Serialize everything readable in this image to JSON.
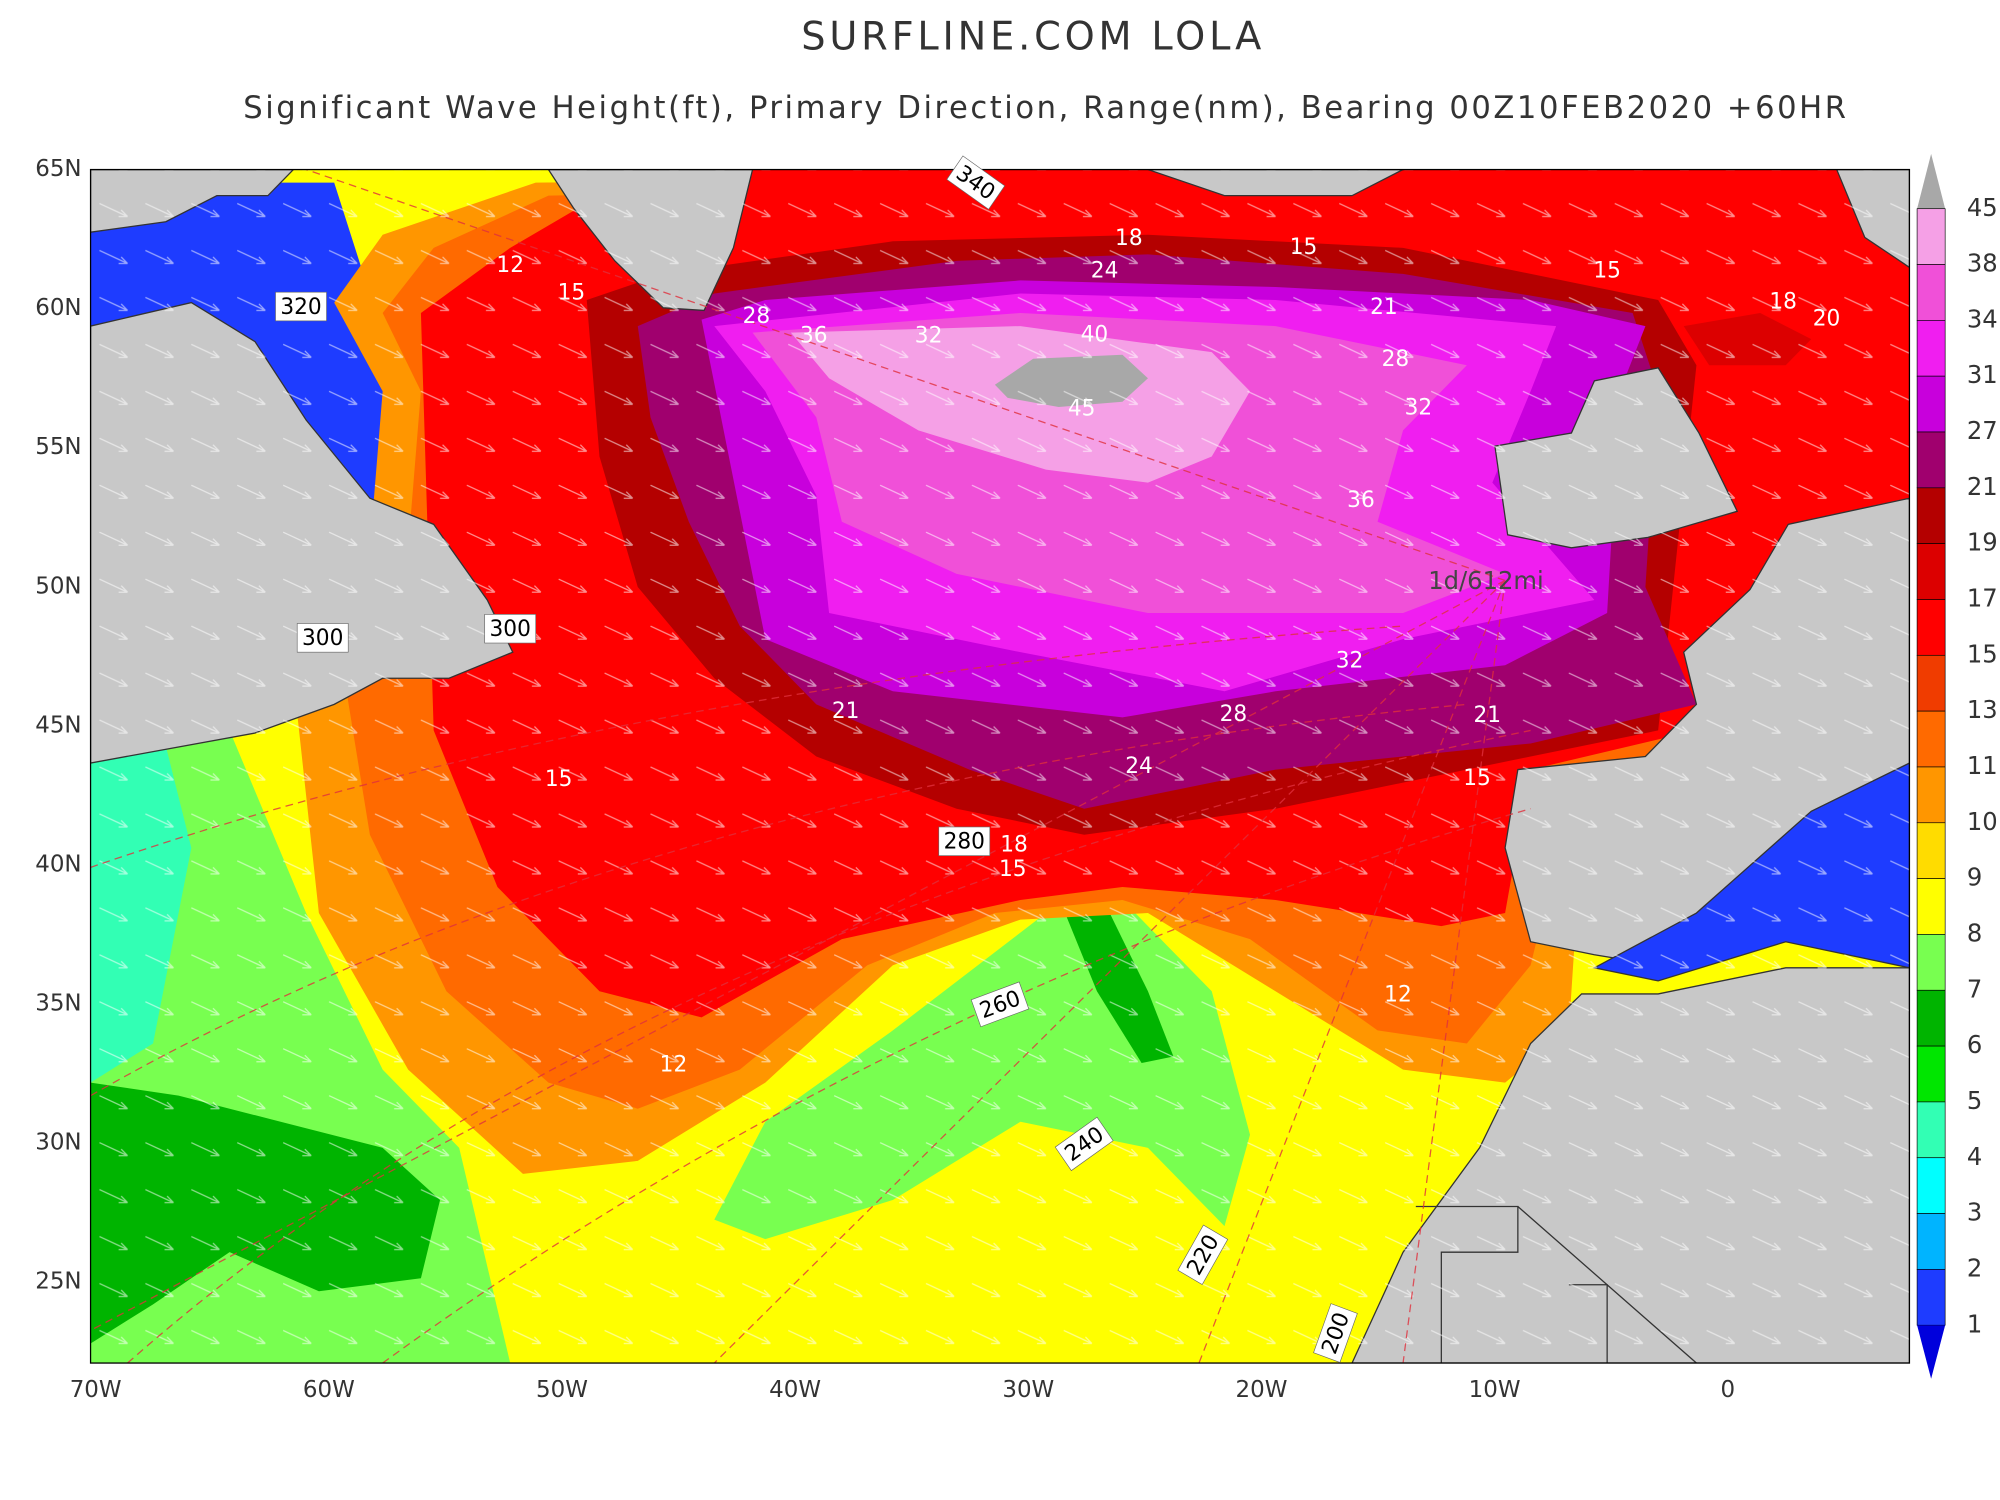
{
  "header": {
    "title": "SURFLINE.COM LOLA",
    "subtitle": "Significant Wave Height(ft), Primary Direction, Range(nm), Bearing 00Z10FEB2020 +60HR"
  },
  "axes": {
    "lat_labels": [
      "65N",
      "60N",
      "55N",
      "50N",
      "45N",
      "40N",
      "35N",
      "30N",
      "25N"
    ],
    "lon_labels": [
      "70W",
      "60W",
      "50W",
      "40W",
      "30W",
      "20W",
      "10W",
      "0"
    ]
  },
  "colorbar": {
    "levels": [
      45,
      38,
      34,
      31,
      27,
      21,
      19,
      17,
      15,
      13,
      11,
      10,
      9,
      8,
      7,
      6,
      5,
      4,
      3,
      2,
      1
    ],
    "colors": [
      "#a8a8a8",
      "#f5a0e6",
      "#f050d8",
      "#f01ef0",
      "#c800dc",
      "#a0006e",
      "#b40000",
      "#dc0000",
      "#ff0000",
      "#f03c00",
      "#ff6a00",
      "#ff9600",
      "#ffdc00",
      "#ffff00",
      "#78ff50",
      "#00b400",
      "#00e600",
      "#32ffb4",
      "#00ffff",
      "#00b4ff",
      "#1e3cff",
      "#0000dc"
    ]
  },
  "contour_labels": [
    18,
    15,
    15,
    18,
    20,
    24,
    21,
    28,
    36,
    32,
    40,
    45,
    28,
    32,
    36,
    32,
    28,
    21,
    21,
    24,
    15,
    18,
    15,
    15,
    12,
    15,
    12,
    12
  ],
  "range_labels": [
    340,
    320,
    300,
    300,
    280,
    260,
    240,
    220,
    200
  ],
  "annotation": "1d/612mi"
}
